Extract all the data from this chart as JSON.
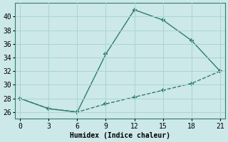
{
  "line1_x": [
    0,
    3,
    6,
    9,
    12,
    15,
    18,
    21
  ],
  "line1_y": [
    28,
    26.5,
    26,
    34.5,
    41,
    39.5,
    36.5,
    32
  ],
  "line2_x": [
    0,
    3,
    6,
    9,
    12,
    15,
    18,
    21
  ],
  "line2_y": [
    28,
    26.5,
    26,
    27.2,
    28.2,
    29.2,
    30.2,
    32
  ],
  "line_color": "#2e7d6e",
  "bg_color": "#cce8e8",
  "xlabel": "Humidex (Indice chaleur)",
  "xlim": [
    -0.5,
    21.5
  ],
  "ylim": [
    25.0,
    42.0
  ],
  "xticks": [
    0,
    3,
    6,
    9,
    12,
    15,
    18,
    21
  ],
  "yticks": [
    26,
    28,
    30,
    32,
    34,
    36,
    38,
    40
  ],
  "grid_color": "#aad4d4",
  "marker": "+",
  "markersize": 5,
  "markeredgewidth": 1.5,
  "linewidth": 1.0
}
